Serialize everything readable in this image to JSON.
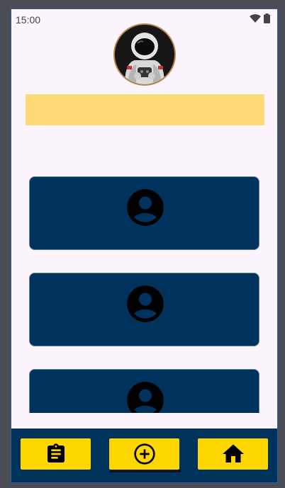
{
  "status_bar": {
    "time": "15:00",
    "icons": [
      "wifi-icon",
      "battery-icon"
    ]
  },
  "header": {
    "avatar": "astronaut-avatar",
    "banner_text": ""
  },
  "cards": [
    {
      "icon": "account-circle-icon"
    },
    {
      "icon": "account-circle-icon"
    },
    {
      "icon": "account-circle-icon"
    }
  ],
  "bottom_nav": {
    "items": [
      {
        "icon": "clipboard-icon"
      },
      {
        "icon": "add-circle-icon",
        "selected": true
      },
      {
        "icon": "home-icon"
      }
    ]
  },
  "colors": {
    "background": "#fdf5fd",
    "card": "#00325e",
    "banner": "#ffdb78",
    "nav_button": "#ffd700",
    "nav_bar": "#00325e"
  }
}
